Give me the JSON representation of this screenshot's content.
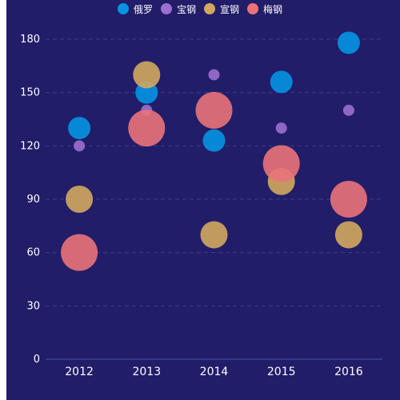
{
  "chart_data": {
    "type": "scatter",
    "subtype": "bubble",
    "categories": [
      "2012",
      "2013",
      "2014",
      "2015",
      "2016"
    ],
    "y_ticks": [
      "0",
      "30",
      "60",
      "90",
      "120",
      "150",
      "180"
    ],
    "ylim": [
      0,
      195
    ],
    "grid": true,
    "legend_position": "top-center",
    "series": [
      {
        "name": "俄罗",
        "color": "#0395e3",
        "points": [
          {
            "x": "2012",
            "y": 130,
            "size": 28
          },
          {
            "x": "2013",
            "y": 150,
            "size": 28
          },
          {
            "x": "2014",
            "y": 123,
            "size": 28
          },
          {
            "x": "2015",
            "y": 156,
            "size": 28
          },
          {
            "x": "2016",
            "y": 178,
            "size": 28
          }
        ]
      },
      {
        "name": "宝钢",
        "color": "#9b6fce",
        "points": [
          {
            "x": "2012",
            "y": 120,
            "size": 14
          },
          {
            "x": "2013",
            "y": 140,
            "size": 14
          },
          {
            "x": "2014",
            "y": 160,
            "size": 14
          },
          {
            "x": "2015",
            "y": 130,
            "size": 14
          },
          {
            "x": "2016",
            "y": 140,
            "size": 14
          }
        ]
      },
      {
        "name": "宣钢",
        "color": "#d2a85e",
        "points": [
          {
            "x": "2012",
            "y": 90,
            "size": 34
          },
          {
            "x": "2013",
            "y": 160,
            "size": 34
          },
          {
            "x": "2014",
            "y": 70,
            "size": 34
          },
          {
            "x": "2015",
            "y": 100,
            "size": 34
          },
          {
            "x": "2016",
            "y": 70,
            "size": 34
          }
        ]
      },
      {
        "name": "梅钢",
        "color": "#ea7379",
        "points": [
          {
            "x": "2012",
            "y": 60,
            "size": 46
          },
          {
            "x": "2013",
            "y": 130,
            "size": 46
          },
          {
            "x": "2014",
            "y": 140,
            "size": 46
          },
          {
            "x": "2015",
            "y": 110,
            "size": 46
          },
          {
            "x": "2016",
            "y": 90,
            "size": 46
          }
        ]
      }
    ]
  }
}
